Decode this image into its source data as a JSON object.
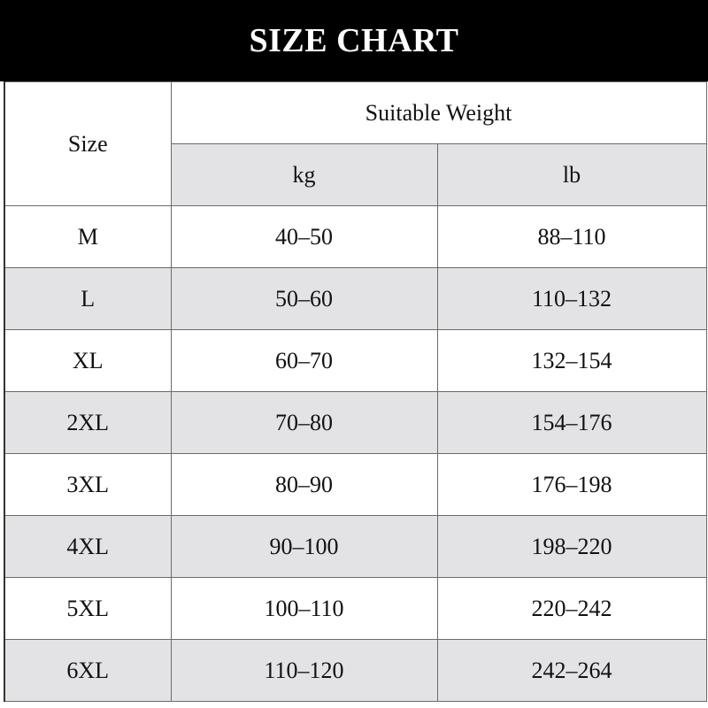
{
  "title": "SIZE CHART",
  "chart_data": {
    "type": "table",
    "title": "SIZE CHART",
    "header": {
      "size": "Size",
      "group": "Suitable Weight",
      "units": [
        "kg",
        "lb"
      ]
    },
    "rows": [
      [
        "M",
        "40–50",
        "88–110"
      ],
      [
        "L",
        "50–60",
        "110–132"
      ],
      [
        "XL",
        "60–70",
        "132–154"
      ],
      [
        "2XL",
        "70–80",
        "154–176"
      ],
      [
        "3XL",
        "80–90",
        "176–198"
      ],
      [
        "4XL",
        "90–100",
        "198–220"
      ],
      [
        "5XL",
        "100–110",
        "220–242"
      ],
      [
        "6XL",
        "110–120",
        "242–264"
      ]
    ]
  },
  "colors": {
    "header_bg": "#000000",
    "stripe": "#e3e3e5"
  }
}
